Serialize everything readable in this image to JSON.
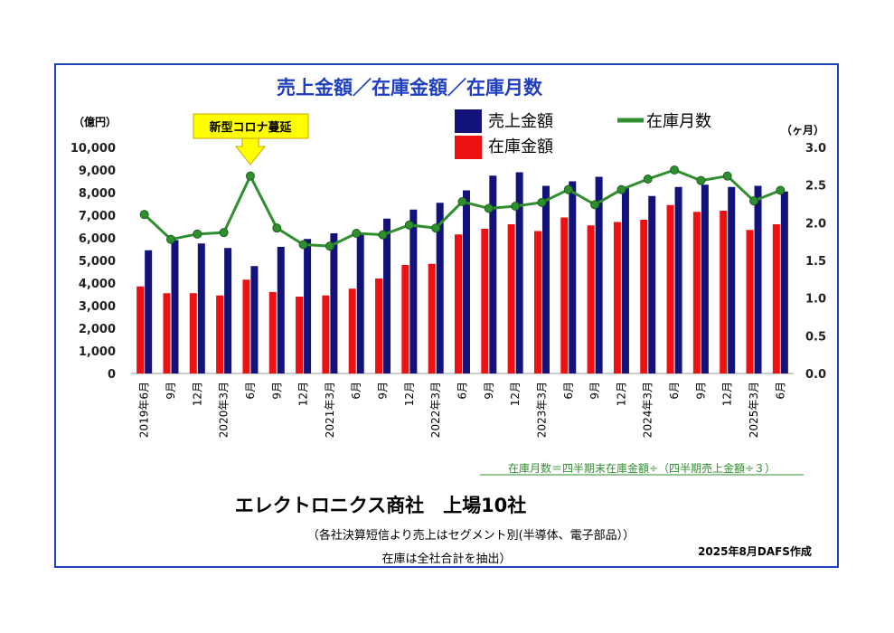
{
  "chart_data": {
    "type": "bar+line",
    "title": "売上金額／在庫金額／在庫月数",
    "y_left_unit": "（億円）",
    "y_right_unit": "（ヶ月）",
    "y_left_range": [
      0,
      10000
    ],
    "y_left_ticks": [
      "0",
      "1,000",
      "2,000",
      "3,000",
      "4,000",
      "5,000",
      "6,000",
      "7,000",
      "8,000",
      "9,000",
      "10,000"
    ],
    "y_right_range": [
      0,
      3.0
    ],
    "y_right_ticks": [
      "0.0",
      "0.5",
      "1.0",
      "1.5",
      "2.0",
      "2.5",
      "3.0"
    ],
    "categories": [
      "2019年6月",
      "9月",
      "12月",
      "2020年3月",
      "6月",
      "9月",
      "12月",
      "2021年3月",
      "6月",
      "9月",
      "12月",
      "2022年3月",
      "6月",
      "9月",
      "12月",
      "2023年3月",
      "6月",
      "9月",
      "12月",
      "2024年3月",
      "6月",
      "9月",
      "12月",
      "2025年3月",
      "6月"
    ],
    "series": [
      {
        "name": "売上金額",
        "type": "bar",
        "axis": "left",
        "color": "#12127a",
        "values": [
          5450,
          5900,
          5750,
          5550,
          4750,
          5600,
          5950,
          6200,
          6200,
          6850,
          7250,
          7550,
          8100,
          8750,
          8900,
          8300,
          8500,
          8700,
          8250,
          7850,
          8250,
          8350,
          8250,
          8300,
          8050
        ]
      },
      {
        "name": "在庫金額",
        "type": "bar",
        "axis": "left",
        "color": "#ee1111",
        "values": [
          3850,
          3550,
          3550,
          3450,
          4150,
          3600,
          3400,
          3450,
          3750,
          4200,
          4800,
          4850,
          6150,
          6400,
          6600,
          6300,
          6900,
          6550,
          6700,
          6800,
          7450,
          7150,
          7200,
          6350,
          6600
        ]
      },
      {
        "name": "在庫月数",
        "type": "line",
        "axis": "right",
        "color": "#2f8f2f",
        "values": [
          2.11,
          1.78,
          1.85,
          1.87,
          2.62,
          1.93,
          1.71,
          1.69,
          1.86,
          1.84,
          1.97,
          1.93,
          2.28,
          2.19,
          2.22,
          2.27,
          2.44,
          2.24,
          2.44,
          2.58,
          2.7,
          2.56,
          2.62,
          2.29,
          2.43
        ]
      }
    ],
    "callout": "新型コロナ蔓延",
    "formula": "在庫月数＝四半期末在庫金額÷（四半期売上金額÷３）",
    "grid": false,
    "legend": "top"
  },
  "footer": {
    "heading": "エレクトロニクス商社　上場10社",
    "note1": "（各社決算短信より売上はセグメント別(半導体、電子部品））",
    "note2": "在庫は全社合計を抽出）",
    "credit": "2025年8月DAFS作成"
  },
  "colors": {
    "frame": "#1f3fbf",
    "title": "#1f3fbf",
    "callout_bg": "#ffff00",
    "callout_border": "#c9a400",
    "formula": "#2f8f2f"
  }
}
